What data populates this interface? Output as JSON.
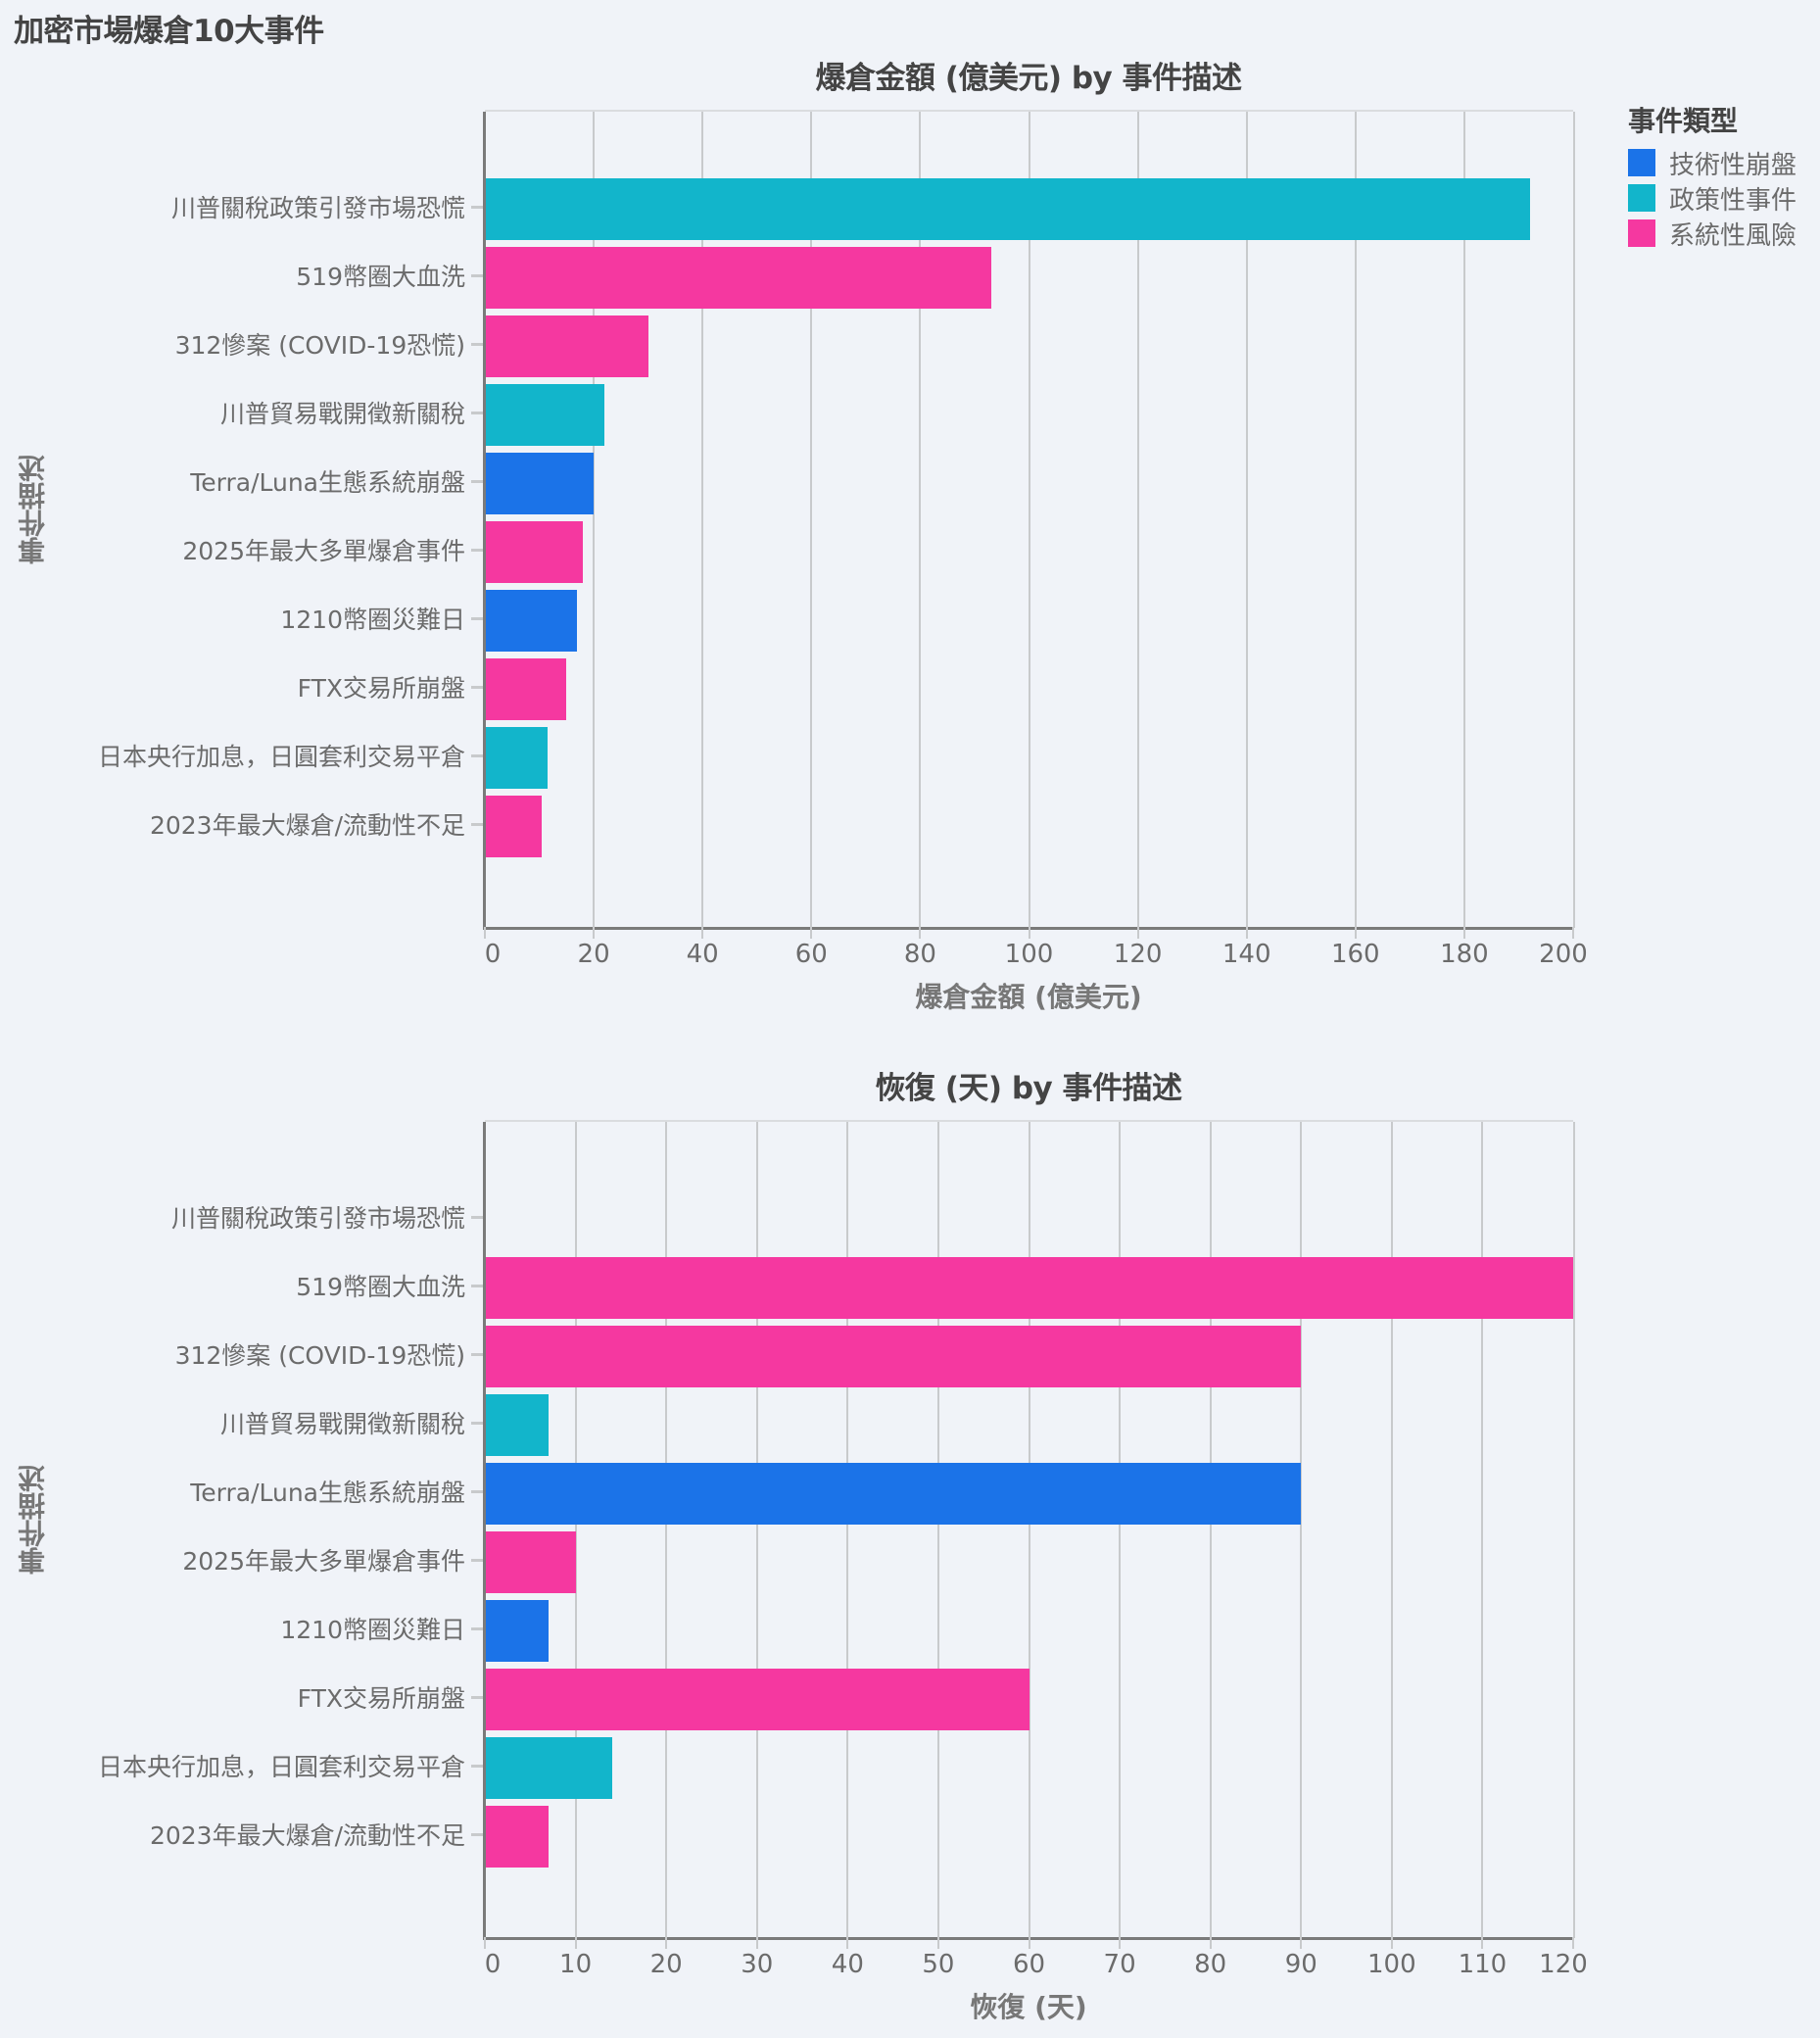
{
  "page": {
    "title": "加密市場爆倉10大事件"
  },
  "legend": {
    "title": "事件類型",
    "items": [
      {
        "label": "技術性崩盤",
        "color": "#1b73e8"
      },
      {
        "label": "政策性事件",
        "color": "#12b5cb"
      },
      {
        "label": "系統性風險",
        "color": "#f538a0"
      }
    ]
  },
  "chart_data": [
    {
      "type": "bar",
      "orientation": "horizontal",
      "title": "爆倉金額 (億美元) by 事件描述",
      "xlabel": "爆倉金額 (億美元)",
      "ylabel": "事件描述",
      "xlim": [
        0,
        200
      ],
      "xticks": [
        0,
        20,
        40,
        60,
        80,
        100,
        120,
        140,
        160,
        180,
        200
      ],
      "grid": true,
      "legend_position": "right",
      "categories": [
        "川普關稅政策引發市場恐慌",
        "519幣圈大血洗",
        "312慘案 (COVID-19恐慌)",
        "川普貿易戰開徵新關稅",
        "Terra/Luna生態系統崩盤",
        "2025年最大多單爆倉事件",
        "1210幣圈災難日",
        "FTX交易所崩盤",
        "日本央行加息，日圓套利交易平倉",
        "2023年最大爆倉/流動性不足"
      ],
      "types": [
        "政策性事件",
        "系統性風險",
        "系統性風險",
        "政策性事件",
        "技術性崩盤",
        "系統性風險",
        "技術性崩盤",
        "系統性風險",
        "政策性事件",
        "系統性風險"
      ],
      "values": [
        192,
        93,
        30,
        22,
        20,
        18,
        17,
        15,
        11.5,
        10.5
      ]
    },
    {
      "type": "bar",
      "orientation": "horizontal",
      "title": "恢復 (天) by 事件描述",
      "xlabel": "恢復 (天)",
      "ylabel": "事件描述",
      "xlim": [
        0,
        120
      ],
      "xticks": [
        0,
        10,
        20,
        30,
        40,
        50,
        60,
        70,
        80,
        90,
        100,
        110,
        120
      ],
      "grid": true,
      "legend_position": "right",
      "categories": [
        "川普關稅政策引發市場恐慌",
        "519幣圈大血洗",
        "312慘案 (COVID-19恐慌)",
        "川普貿易戰開徵新關稅",
        "Terra/Luna生態系統崩盤",
        "2025年最大多單爆倉事件",
        "1210幣圈災難日",
        "FTX交易所崩盤",
        "日本央行加息，日圓套利交易平倉",
        "2023年最大爆倉/流動性不足"
      ],
      "types": [
        "政策性事件",
        "系統性風險",
        "系統性風險",
        "政策性事件",
        "技術性崩盤",
        "系統性風險",
        "技術性崩盤",
        "系統性風險",
        "政策性事件",
        "系統性風險"
      ],
      "values": [
        0,
        120,
        90,
        7,
        90,
        10,
        7,
        60,
        14,
        7
      ]
    }
  ]
}
